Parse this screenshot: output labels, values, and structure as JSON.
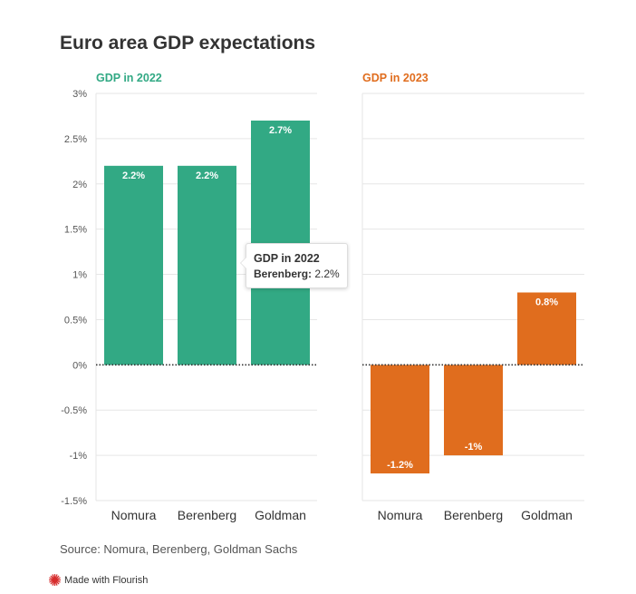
{
  "title": "Euro area GDP expectations",
  "source": "Source: Nomura, Berenberg, Goldman Sachs",
  "credit": "Made with Flourish",
  "tooltip": {
    "title": "GDP in 2022",
    "label": "Berenberg:",
    "value": "2.2%"
  },
  "colors": {
    "series_2022": "#32a984",
    "series_2023": "#e06d1e"
  },
  "chart_data": {
    "type": "bar",
    "categories": [
      "Nomura",
      "Berenberg",
      "Goldman"
    ],
    "ylim": [
      -1.5,
      3
    ],
    "yticks": [
      3,
      2.5,
      2,
      1.5,
      1,
      0.5,
      0,
      -0.5,
      -1,
      -1.5
    ],
    "ytick_labels": [
      "3%",
      "2.5%",
      "2%",
      "1.5%",
      "1%",
      "0.5%",
      "0%",
      "-0.5%",
      "-1%",
      "-1.5%"
    ],
    "grid": true,
    "series": [
      {
        "name": "GDP in 2022",
        "values": [
          2.2,
          2.2,
          2.7
        ],
        "labels": [
          "2.2%",
          "2.2%",
          "2.7%"
        ]
      },
      {
        "name": "GDP in 2023",
        "values": [
          -1.2,
          -1,
          0.8
        ],
        "labels": [
          "-1.2%",
          "-1%",
          "0.8%"
        ]
      }
    ]
  }
}
